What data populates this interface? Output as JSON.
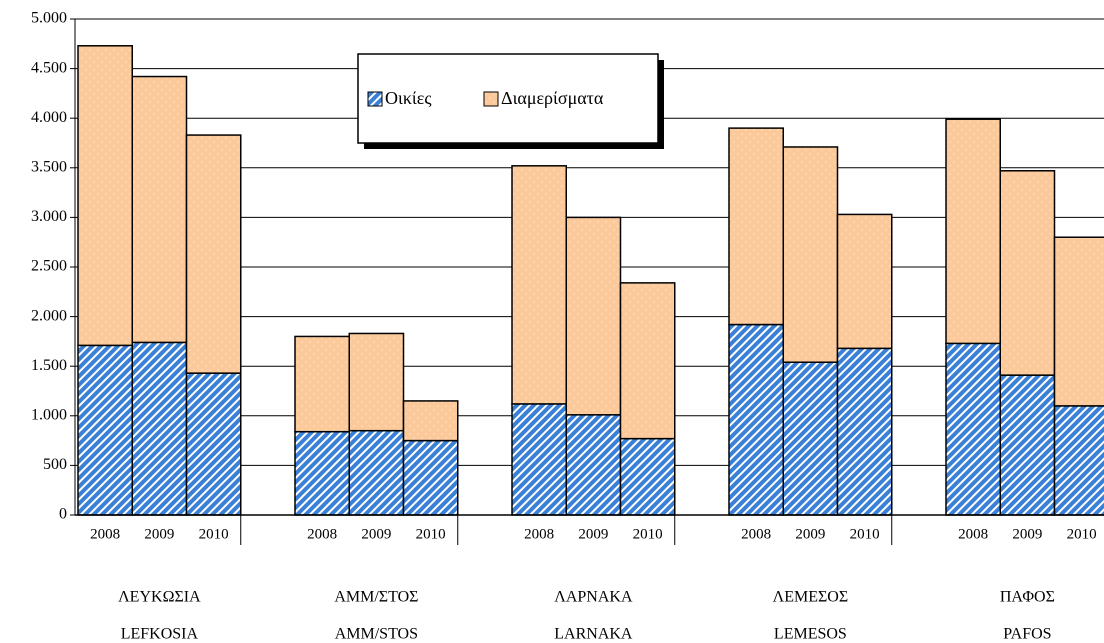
{
  "chart_data": {
    "type": "stacked-bar",
    "categories": [
      "2008",
      "2009",
      "2010",
      "2008",
      "2009",
      "2010",
      "2008",
      "2009",
      "2010",
      "2008",
      "2009",
      "2010",
      "2008",
      "2009",
      "2010"
    ],
    "groups": [
      {
        "labels": [
          "ΛΕΥΚΩΣΙΑ",
          "LEFKOSIA"
        ]
      },
      {
        "labels": [
          "ΑΜΜ/ΣΤΟΣ",
          "AMM/STOS"
        ]
      },
      {
        "labels": [
          "ΛΑΡΝΑΚΑ",
          "LARNAKA"
        ]
      },
      {
        "labels": [
          "ΛΕΜΕΣΟΣ",
          "LEMESOS"
        ]
      },
      {
        "labels": [
          "ΠΑΦΟΣ",
          "PAFOS"
        ]
      }
    ],
    "series": [
      {
        "name": "Οικίες",
        "color": "#3a80d6",
        "values": [
          1710,
          1740,
          1430,
          840,
          850,
          750,
          1120,
          1010,
          770,
          1920,
          1540,
          1680,
          1730,
          1410,
          1100
        ]
      },
      {
        "name": "Διαμερίσματα",
        "color": "#fbc99a",
        "values": [
          3020,
          2680,
          2400,
          960,
          980,
          400,
          2400,
          1990,
          1570,
          1980,
          2170,
          1350,
          2260,
          2060,
          1700
        ]
      }
    ],
    "ylim": [
      0,
      5000
    ],
    "yticks": [
      0,
      500,
      {
        "value": 1000,
        "label": "1.000"
      },
      {
        "value": 1500,
        "label": "1.500"
      },
      {
        "value": 2000,
        "label": "2.000"
      },
      {
        "value": 2500,
        "label": "2.500"
      },
      {
        "value": 3000,
        "label": "3.000"
      },
      {
        "value": 3500,
        "label": "3.500"
      },
      {
        "value": 4000,
        "label": "4.000"
      },
      {
        "value": 4500,
        "label": "4.500"
      },
      {
        "value": 5000,
        "label": "5.000"
      }
    ],
    "grid": true
  }
}
